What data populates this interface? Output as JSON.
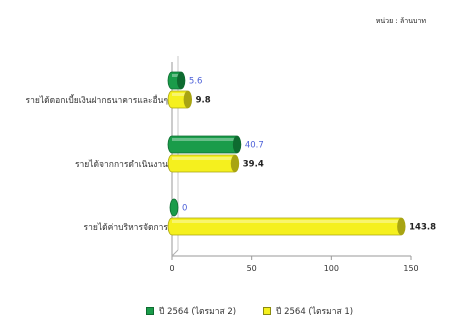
{
  "unit_label": "หน่วย : ล้านบาท",
  "chart_data": {
    "type": "bar",
    "orientation": "horizontal",
    "categories": [
      "รายได้ดอกเบี้ยเงินฝากธนาคารและอื่นๆ",
      "รายได้จากการดำเนินงาน",
      "รายได้ค่าบริหารจัดการ"
    ],
    "series": [
      {
        "name": "ปี 2564 (ไตรมาส 2)",
        "values": [
          5.6,
          40.7,
          0
        ],
        "color": "#1a9c4a",
        "label_color": "#4b5fd8"
      },
      {
        "name": "ปี 2564 (ไตรมาส 1)",
        "values": [
          9.8,
          39.4,
          143.8
        ],
        "color": "#f5f01e",
        "label_color": "#222222"
      }
    ],
    "xlim": [
      0,
      150
    ],
    "xticks": [
      0,
      50,
      100,
      150
    ],
    "legend_position": "bottom",
    "grid": false
  }
}
